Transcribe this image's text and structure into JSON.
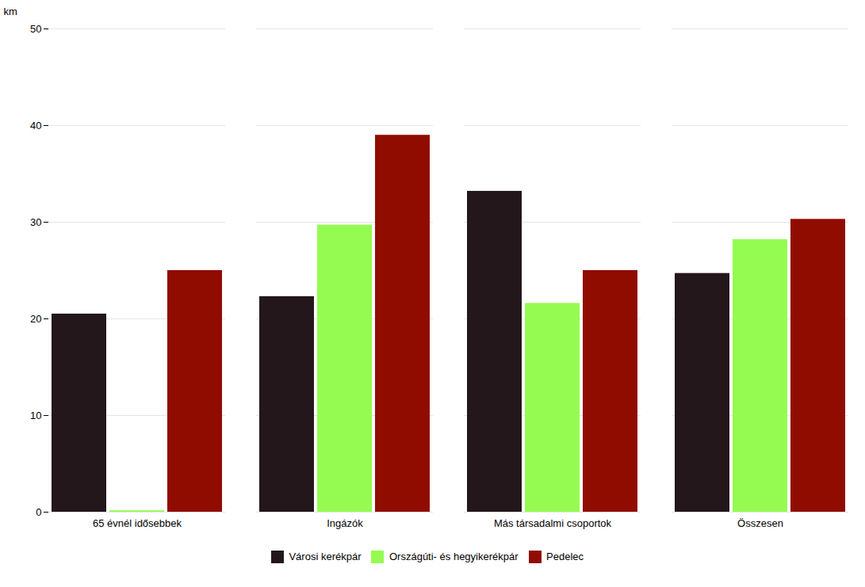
{
  "chart_data": {
    "type": "bar",
    "categories": [
      "65 évnél idősebbek",
      "Ingázók",
      "Más társadalmi csoportok",
      "Összesen"
    ],
    "series": [
      {
        "name": "Városi kerékpár",
        "values": [
          20.5,
          22.3,
          33.2,
          24.7
        ]
      },
      {
        "name": "Országúti- és hegyikerékpár",
        "values": [
          0.15,
          29.7,
          21.6,
          28.2
        ]
      },
      {
        "name": "Pedelec",
        "values": [
          25.0,
          39.0,
          25.0,
          30.3
        ]
      }
    ],
    "ylabel": "km",
    "ylim": [
      0,
      50
    ],
    "yticks": [
      0,
      10,
      20,
      30,
      40,
      50
    ],
    "grid": true,
    "legend": "bottom"
  }
}
